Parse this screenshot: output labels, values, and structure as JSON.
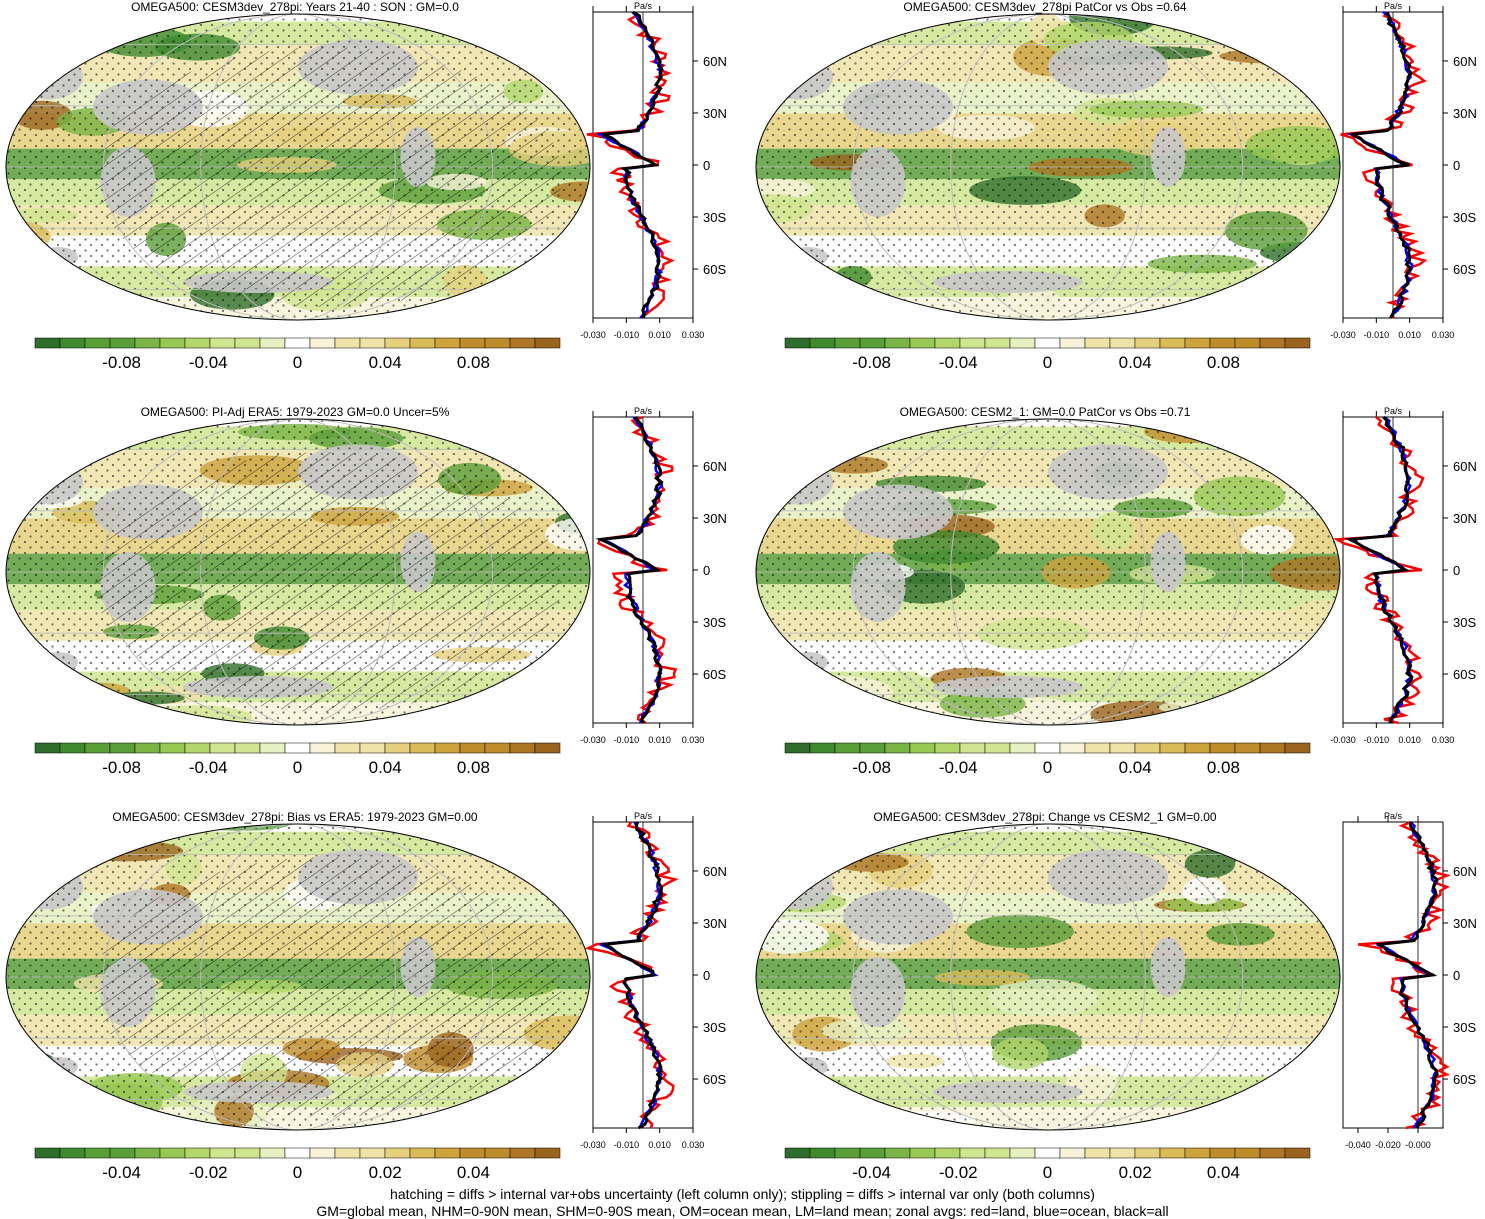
{
  "footer": {
    "line1": "hatching = diffs > internal var+obs uncertainty (left column only); stippling = diffs > internal var only (both columns)",
    "line2": "GM=global mean, NHM=0-90N mean, SHM=0-90S mean, OM=ocean mean, LM=land mean; zonal avgs: red=land, blue=ocean, black=all"
  },
  "colors": {
    "land_mask": "#c8c8c8",
    "zonal_land": "#ff0000",
    "zonal_ocean": "#0000ff",
    "zonal_all": "#000000",
    "palette": [
      "#2f6e2a",
      "#3f8a2f",
      "#5a9e38",
      "#79b445",
      "#97c853",
      "#b2d66a",
      "#cfe58f",
      "#e6f0c0",
      "#ffffff",
      "#f8f3d8",
      "#efe3a8",
      "#e5d07c",
      "#d9bb58",
      "#cda33c",
      "#bf8c2c",
      "#ad7624",
      "#9a641e"
    ]
  },
  "chart_data": [
    {
      "type": "heatmap",
      "title": "OMEGA500: CESM3dev_278pi: Years 21-40 : SON : GM=0.0",
      "colorbar_ticks": [
        "-0.08",
        "-0.04",
        "0",
        "0.04",
        "0.08"
      ],
      "zonal_profile": {
        "unit": "Pa/s",
        "lat_ticks": [
          "60N",
          "30N",
          "0",
          "30S",
          "60S"
        ],
        "x_ticks": [
          "-0.030",
          "-0.010",
          "0.010",
          "0.030"
        ],
        "series": [
          "land",
          "ocean",
          "all"
        ]
      },
      "hatching": true
    },
    {
      "type": "heatmap",
      "title": "OMEGA500: CESM3dev_278pi PatCor vs Obs =0.64",
      "colorbar_ticks": [
        "-0.08",
        "-0.04",
        "0",
        "0.04",
        "0.08"
      ],
      "zonal_profile": {
        "unit": "Pa/s",
        "lat_ticks": [
          "60N",
          "30N",
          "0",
          "30S",
          "60S"
        ],
        "x_ticks": [
          "-0.030",
          "-0.010",
          "0.010",
          "0.030"
        ],
        "series": [
          "land",
          "ocean",
          "all"
        ]
      },
      "hatching": false
    },
    {
      "type": "heatmap",
      "title": "OMEGA500: PI-Adj ERA5: 1979-2023 GM=0.0 Uncer=5%",
      "colorbar_ticks": [
        "-0.08",
        "-0.04",
        "0",
        "0.04",
        "0.08"
      ],
      "zonal_profile": {
        "unit": "Pa/s",
        "lat_ticks": [
          "60N",
          "30N",
          "0",
          "30S",
          "60S"
        ],
        "x_ticks": [
          "-0.030",
          "-0.010",
          "0.010",
          "0.030"
        ],
        "series": [
          "land",
          "ocean",
          "all"
        ]
      },
      "hatching": true
    },
    {
      "type": "heatmap",
      "title": "OMEGA500: CESM2_1: GM=0.0 PatCor vs Obs =0.71",
      "colorbar_ticks": [
        "-0.08",
        "-0.04",
        "0",
        "0.04",
        "0.08"
      ],
      "zonal_profile": {
        "unit": "Pa/s",
        "lat_ticks": [
          "60N",
          "30N",
          "0",
          "30S",
          "60S"
        ],
        "x_ticks": [
          "-0.030",
          "-0.010",
          "0.010",
          "0.030"
        ],
        "series": [
          "land",
          "ocean",
          "all"
        ]
      },
      "hatching": false
    },
    {
      "type": "heatmap",
      "title": "OMEGA500: CESM3dev_278pi: Bias vs ERA5: 1979-2023  GM=0.00",
      "colorbar_ticks": [
        "-0.04",
        "-0.02",
        "0",
        "0.02",
        "0.04"
      ],
      "zonal_profile": {
        "unit": "Pa/s",
        "lat_ticks": [
          "60N",
          "30N",
          "0",
          "30S",
          "60S"
        ],
        "x_ticks": [
          "-0.030",
          "-0.010",
          "0.010",
          "0.030"
        ],
        "series": [
          "land",
          "ocean",
          "all"
        ]
      },
      "hatching": true
    },
    {
      "type": "heatmap",
      "title": "OMEGA500: CESM3dev_278pi: Change vs CESM2_1 GM=0.00",
      "colorbar_ticks": [
        "-0.04",
        "-0.02",
        "0",
        "0.02",
        "0.04"
      ],
      "zonal_profile": {
        "unit": "Pa/s",
        "lat_ticks": [
          "60N",
          "30N",
          "0",
          "30S",
          "60S"
        ],
        "x_ticks": [
          "-0.040",
          "-0.020",
          "-0.000"
        ],
        "series": [
          "land",
          "ocean",
          "all"
        ]
      },
      "hatching": false
    }
  ]
}
